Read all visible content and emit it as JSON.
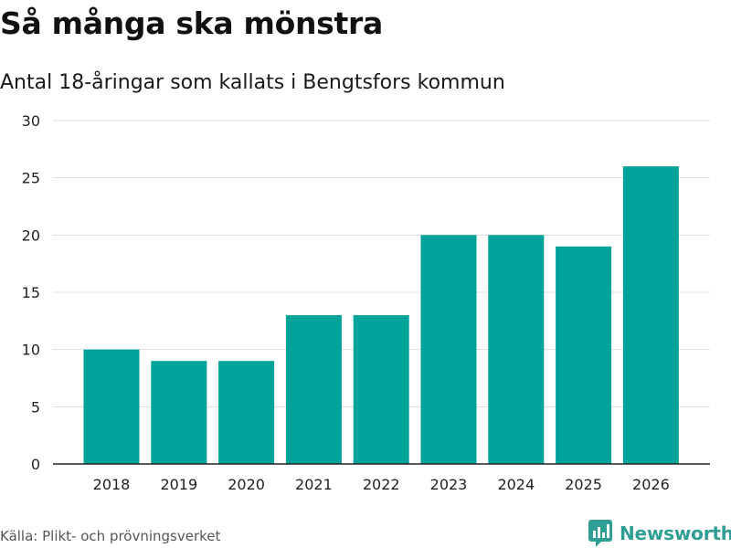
{
  "header": {
    "title": "Så många ska mönstra",
    "subtitle": "Antal 18-åringar som kallats i Bengtsfors kommun"
  },
  "footer": {
    "source": "Källa: Plikt- och prövningsverket",
    "brand": "Newsworthy"
  },
  "colors": {
    "bar": "#00a39a",
    "grid": "#dddddd",
    "axis": "#222222",
    "brand": "#2f9e94"
  },
  "chart_data": {
    "type": "bar",
    "title": "Så många ska mönstra",
    "subtitle": "Antal 18-åringar som kallats i Bengtsfors kommun",
    "xlabel": "",
    "ylabel": "",
    "categories": [
      "2018",
      "2019",
      "2020",
      "2021",
      "2022",
      "2023",
      "2024",
      "2025",
      "2026"
    ],
    "values": [
      10,
      9,
      9,
      13,
      13,
      20,
      20,
      19,
      26
    ],
    "ylim": [
      0,
      30
    ],
    "yticks": [
      0,
      5,
      10,
      15,
      20,
      25,
      30
    ],
    "grid": true
  }
}
